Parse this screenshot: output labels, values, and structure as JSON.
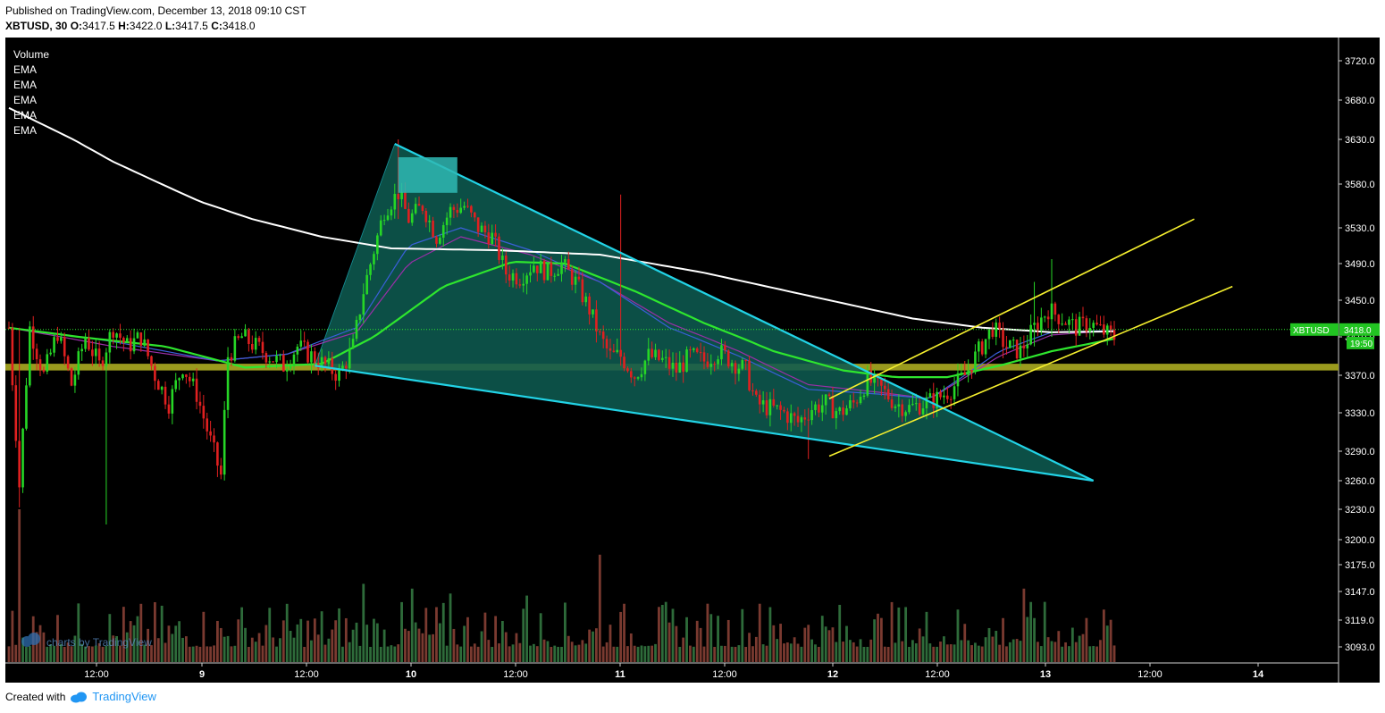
{
  "header": {
    "published": "Published on TradingView.com, December 13, 2018 09:10 CST",
    "symbol": "XBTUSD, 30",
    "open_label": "O:",
    "open": "3417.5",
    "high_label": "H:",
    "high": "3422.0",
    "low_label": "L:",
    "low": "3417.5",
    "close_label": "C:",
    "close": "3418.0"
  },
  "indicators": [
    "Volume",
    "EMA",
    "EMA",
    "EMA",
    "EMA",
    "EMA"
  ],
  "watermark": "charts by TradingView",
  "footer": {
    "created_with": "Created with",
    "brand": "TradingView"
  },
  "price_tag": {
    "symbol": "XBTUSD",
    "price": "3418.0",
    "countdown": "19:50"
  },
  "colors": {
    "background": "#000000",
    "bull": "#26d626",
    "bear": "#e02020",
    "ema_white": "#ffffff",
    "ema_green": "#2ee62e",
    "ema_blue": "#3a5fd8",
    "ema_purple": "#9a2fa8",
    "triangle_fill": "#0e5a50",
    "triangle_edge": "#22d3e6",
    "zone": "#9a9a1e",
    "channel": "#f5ef2e",
    "vol_bull": "#2e6b3a",
    "vol_bear": "#7a3a30"
  },
  "chart_data": {
    "type": "candlestick",
    "symbol": "XBTUSD",
    "timeframe": "30",
    "y_ticks": [
      3720.0,
      3680.0,
      3630.0,
      3580.0,
      3530.0,
      3490.0,
      3450.0,
      3410.0,
      3370.0,
      3330.0,
      3290.0,
      3260.0,
      3230.0,
      3200.0,
      3175.0,
      3147.0,
      3119.0,
      3093.0
    ],
    "ylim": [
      3070,
      3750
    ],
    "x_tick_labels": [
      "12:00",
      "9",
      "12:00",
      "10",
      "12:00",
      "11",
      "12:00",
      "12",
      "12:00",
      "13",
      "12:00",
      "14"
    ],
    "last_price": 3418.0,
    "candle_path": [
      [
        0,
        3420
      ],
      [
        3,
        3255
      ],
      [
        6,
        3420
      ],
      [
        10,
        3370
      ],
      [
        14,
        3415
      ],
      [
        18,
        3360
      ],
      [
        22,
        3410
      ],
      [
        26,
        3380
      ],
      [
        30,
        3420
      ],
      [
        34,
        3400
      ],
      [
        38,
        3410
      ],
      [
        42,
        3370
      ],
      [
        46,
        3340
      ],
      [
        50,
        3380
      ],
      [
        54,
        3350
      ],
      [
        58,
        3300
      ],
      [
        61,
        3265
      ],
      [
        63,
        3390
      ],
      [
        67,
        3410
      ],
      [
        71,
        3400
      ],
      [
        75,
        3390
      ],
      [
        79,
        3380
      ],
      [
        83,
        3400
      ],
      [
        87,
        3390
      ],
      [
        91,
        3380
      ],
      [
        95,
        3370
      ],
      [
        99,
        3400
      ],
      [
        102,
        3460
      ],
      [
        104,
        3490
      ],
      [
        108,
        3550
      ],
      [
        112,
        3570
      ],
      [
        115,
        3540
      ],
      [
        119,
        3555
      ],
      [
        123,
        3520
      ],
      [
        127,
        3550
      ],
      [
        131,
        3555
      ],
      [
        135,
        3530
      ],
      [
        139,
        3520
      ],
      [
        143,
        3480
      ],
      [
        147,
        3475
      ],
      [
        151,
        3490
      ],
      [
        155,
        3480
      ],
      [
        159,
        3490
      ],
      [
        163,
        3470
      ],
      [
        167,
        3440
      ],
      [
        170,
        3410
      ],
      [
        173,
        3390
      ],
      [
        176,
        3390
      ],
      [
        180,
        3370
      ],
      [
        184,
        3390
      ],
      [
        188,
        3385
      ],
      [
        192,
        3375
      ],
      [
        196,
        3390
      ],
      [
        200,
        3385
      ],
      [
        204,
        3395
      ],
      [
        208,
        3385
      ],
      [
        212,
        3375
      ],
      [
        215,
        3340
      ],
      [
        219,
        3335
      ],
      [
        223,
        3330
      ],
      [
        227,
        3320
      ],
      [
        231,
        3335
      ],
      [
        235,
        3340
      ],
      [
        239,
        3330
      ],
      [
        243,
        3340
      ],
      [
        247,
        3365
      ],
      [
        251,
        3355
      ],
      [
        255,
        3340
      ],
      [
        259,
        3335
      ],
      [
        263,
        3340
      ],
      [
        267,
        3345
      ],
      [
        271,
        3355
      ],
      [
        275,
        3370
      ],
      [
        279,
        3395
      ],
      [
        283,
        3420
      ],
      [
        287,
        3400
      ],
      [
        291,
        3395
      ],
      [
        295,
        3420
      ],
      [
        299,
        3440
      ],
      [
        303,
        3430
      ],
      [
        307,
        3420
      ],
      [
        311,
        3425
      ],
      [
        315,
        3415
      ],
      [
        318,
        3410
      ]
    ],
    "volume_spikes": [
      [
        3,
        3230
      ],
      [
        102,
        3155
      ],
      [
        116,
        3150
      ],
      [
        127,
        3145
      ],
      [
        149,
        3143
      ],
      [
        170,
        3185
      ],
      [
        216,
        3135
      ],
      [
        292,
        3150
      ]
    ],
    "ema_white": [
      [
        0,
        3670
      ],
      [
        30,
        3605
      ],
      [
        55,
        3560
      ],
      [
        70,
        3540
      ],
      [
        90,
        3520
      ],
      [
        110,
        3507
      ],
      [
        140,
        3505
      ],
      [
        170,
        3500
      ],
      [
        200,
        3480
      ],
      [
        230,
        3455
      ],
      [
        260,
        3430
      ],
      [
        280,
        3420
      ],
      [
        300,
        3415
      ],
      [
        318,
        3416
      ]
    ],
    "ema_green": [
      [
        0,
        3420
      ],
      [
        20,
        3410
      ],
      [
        45,
        3400
      ],
      [
        68,
        3378
      ],
      [
        90,
        3382
      ],
      [
        105,
        3410
      ],
      [
        125,
        3465
      ],
      [
        145,
        3492
      ],
      [
        160,
        3490
      ],
      [
        180,
        3460
      ],
      [
        200,
        3425
      ],
      [
        220,
        3395
      ],
      [
        240,
        3375
      ],
      [
        255,
        3368
      ],
      [
        270,
        3368
      ],
      [
        285,
        3380
      ],
      [
        300,
        3395
      ],
      [
        318,
        3408
      ]
    ],
    "ema_blue": [
      [
        0,
        3420
      ],
      [
        30,
        3405
      ],
      [
        60,
        3385
      ],
      [
        80,
        3392
      ],
      [
        100,
        3420
      ],
      [
        115,
        3510
      ],
      [
        130,
        3530
      ],
      [
        150,
        3505
      ],
      [
        170,
        3470
      ],
      [
        190,
        3420
      ],
      [
        210,
        3390
      ],
      [
        230,
        3355
      ],
      [
        250,
        3350
      ],
      [
        265,
        3345
      ],
      [
        285,
        3395
      ],
      [
        300,
        3415
      ],
      [
        318,
        3417
      ]
    ],
    "ema_purple": [
      [
        0,
        3420
      ],
      [
        30,
        3400
      ],
      [
        60,
        3385
      ],
      [
        80,
        3392
      ],
      [
        100,
        3415
      ],
      [
        115,
        3490
      ],
      [
        130,
        3520
      ],
      [
        150,
        3500
      ],
      [
        170,
        3470
      ],
      [
        190,
        3425
      ],
      [
        210,
        3395
      ],
      [
        230,
        3360
      ],
      [
        250,
        3352
      ],
      [
        265,
        3345
      ],
      [
        285,
        3390
      ],
      [
        300,
        3412
      ],
      [
        318,
        3417
      ]
    ],
    "triangle": [
      [
        88,
        3380
      ],
      [
        111,
        3625
      ],
      [
        312,
        3260
      ]
    ],
    "highlight_box": [
      [
        112,
        3570
      ],
      [
        129,
        3610
      ]
    ],
    "support_zone": [
      3375,
      3382
    ],
    "channel_upper": [
      [
        236,
        3345
      ],
      [
        341,
        3540
      ]
    ],
    "channel_lower": [
      [
        236,
        3285
      ],
      [
        352,
        3465
      ]
    ]
  }
}
